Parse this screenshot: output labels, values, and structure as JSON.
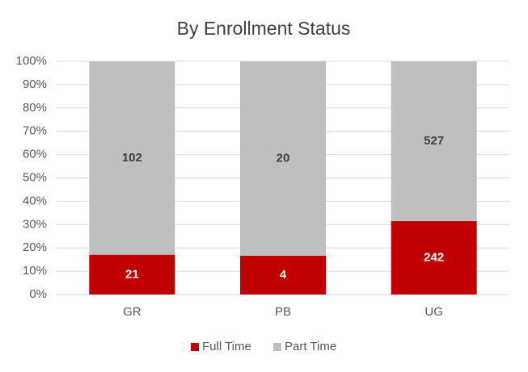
{
  "chart_data": {
    "type": "bar",
    "stacking": "percent",
    "title": "By Enrollment Status",
    "categories": [
      "GR",
      "PB",
      "UG"
    ],
    "series": [
      {
        "name": "Full Time",
        "color": "#c00000",
        "label_color": "#ffffff",
        "values": [
          21,
          4,
          242
        ]
      },
      {
        "name": "Part Time",
        "color": "#bfbfbf",
        "label_color": "#404040",
        "values": [
          102,
          20,
          527
        ]
      }
    ],
    "ylim": [
      0,
      100
    ],
    "yticks": [
      {
        "value": 0,
        "label": "0%"
      },
      {
        "value": 10,
        "label": "10%"
      },
      {
        "value": 20,
        "label": "20%"
      },
      {
        "value": 30,
        "label": "30%"
      },
      {
        "value": 40,
        "label": "40%"
      },
      {
        "value": 50,
        "label": "50%"
      },
      {
        "value": 60,
        "label": "60%"
      },
      {
        "value": 70,
        "label": "70%"
      },
      {
        "value": 80,
        "label": "80%"
      },
      {
        "value": 90,
        "label": "90%"
      },
      {
        "value": 100,
        "label": "100%"
      }
    ],
    "grid": true,
    "legend": "bottom"
  }
}
